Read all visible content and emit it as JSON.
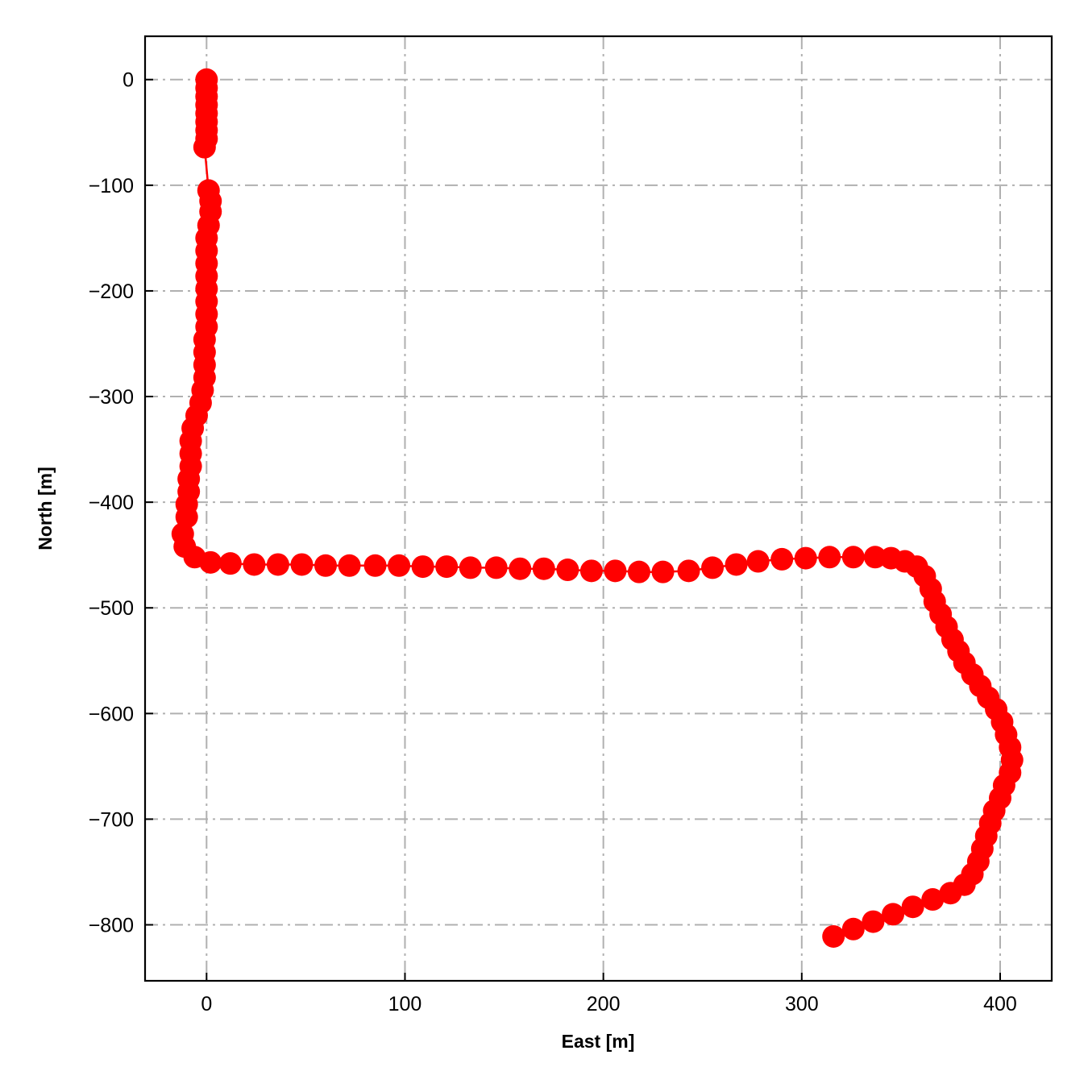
{
  "chart_data": {
    "type": "line",
    "title": "",
    "xlabel": "East [m]",
    "ylabel": "North [m]",
    "xlim": [
      -31,
      426
    ],
    "ylim": [
      -853,
      41
    ],
    "xticks": [
      0,
      100,
      200,
      300,
      400
    ],
    "yticks": [
      0,
      -100,
      -200,
      -300,
      -400,
      -500,
      -600,
      -700,
      -800
    ],
    "grid": true,
    "grid_style": "dash-dot",
    "marker": "circle",
    "colors": {
      "series": "#ff0000",
      "grid": "#b0b0b0",
      "axes": "#000000"
    },
    "series": [
      {
        "x": [
          0,
          0,
          0,
          0,
          0,
          0,
          0,
          0,
          -1,
          1,
          2,
          2,
          1,
          0,
          0,
          0,
          0,
          0,
          0,
          0,
          0,
          -1,
          -1,
          -1,
          -1,
          -2,
          -3,
          -5,
          -7,
          -8,
          -8,
          -8,
          -9,
          -9,
          -10,
          -10,
          -12,
          -11,
          -6,
          2,
          12,
          24,
          36,
          48,
          60,
          72,
          85,
          97,
          109,
          121,
          133,
          146,
          158,
          170,
          182,
          194,
          206,
          218,
          230,
          243,
          255,
          267,
          278,
          290,
          302,
          314,
          326,
          337,
          345,
          352,
          358,
          362,
          365,
          367,
          370,
          373,
          376,
          379,
          382,
          386,
          390,
          394,
          398,
          401,
          403,
          405,
          406,
          405,
          402,
          400,
          397,
          395,
          393,
          391,
          389,
          386,
          382,
          375,
          366,
          356,
          346,
          336,
          326,
          316
        ],
        "y": [
          0,
          -8,
          -16,
          -24,
          -32,
          -40,
          -48,
          -56,
          -64,
          -105,
          -115,
          -125,
          -138,
          -150,
          -162,
          -174,
          -186,
          -198,
          -210,
          -222,
          -234,
          -246,
          -258,
          -270,
          -282,
          -294,
          -306,
          -318,
          -330,
          -342,
          -354,
          -366,
          -378,
          -390,
          -402,
          -414,
          -430,
          -442,
          -452,
          -457,
          -458,
          -459,
          -459,
          -459,
          -460,
          -460,
          -460,
          -460,
          -461,
          -461,
          -462,
          -462,
          -463,
          -463,
          -464,
          -465,
          -465,
          -466,
          -466,
          -465,
          -462,
          -459,
          -456,
          -454,
          -453,
          -452,
          -452,
          -452,
          -453,
          -456,
          -461,
          -470,
          -482,
          -494,
          -506,
          -518,
          -530,
          -541,
          -552,
          -563,
          -574,
          -585,
          -596,
          -608,
          -620,
          -632,
          -644,
          -656,
          -668,
          -680,
          -692,
          -704,
          -716,
          -728,
          -740,
          -752,
          -762,
          -770,
          -776,
          -783,
          -790,
          -797,
          -804,
          -811
        ]
      }
    ]
  }
}
